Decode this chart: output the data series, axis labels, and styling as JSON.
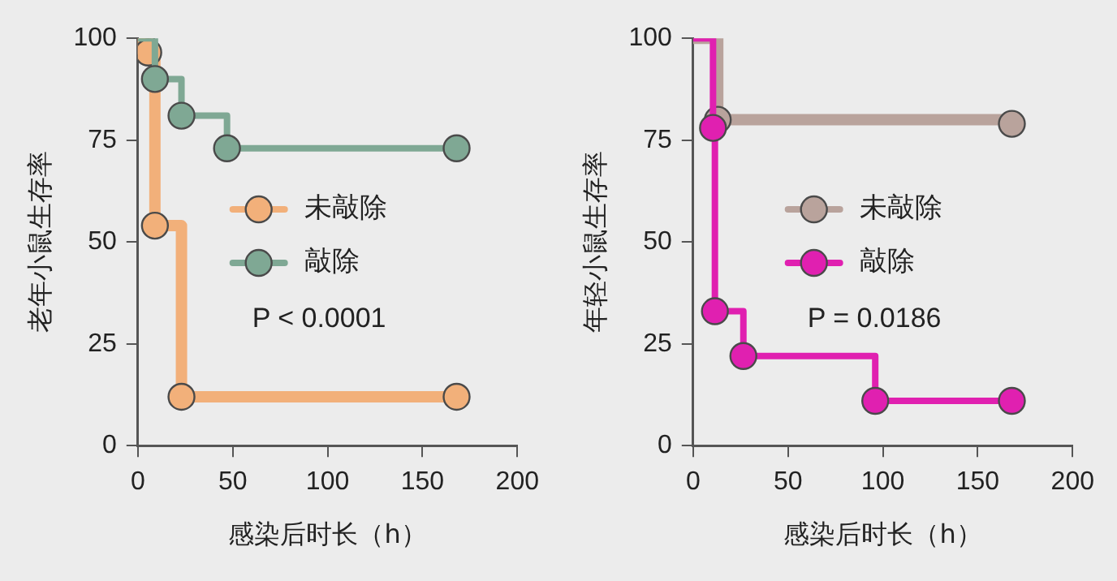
{
  "chart_data": [
    {
      "type": "step",
      "xlabel": "感染后时长（h）",
      "ylabel": "老年小鼠生存率",
      "xlim": [
        0,
        200
      ],
      "xticks": [
        0,
        50,
        100,
        150,
        200
      ],
      "ylim": [
        0,
        100
      ],
      "yticks": [
        0,
        25,
        50,
        75,
        100
      ],
      "grid": false,
      "legend": "right",
      "marker": "circle",
      "annotations": [
        "P < 0.0001"
      ],
      "series": [
        {
          "name": "敲除",
          "color": "#7fa894",
          "x": [
            0,
            9,
            23,
            47,
            168
          ],
          "values": [
            100,
            90,
            81,
            73,
            73
          ]
        },
        {
          "name": "未敲除",
          "color": "#f2b07a",
          "x": [
            0,
            2,
            5.5,
            9,
            23,
            168
          ],
          "values": [
            100,
            99,
            96.5,
            54,
            12,
            12
          ]
        }
      ]
    },
    {
      "type": "step",
      "xlabel": "感染后时长（h）",
      "ylabel": "年轻小鼠生存率",
      "xlim": [
        0,
        200
      ],
      "xticks": [
        0,
        50,
        100,
        150,
        200
      ],
      "ylim": [
        0,
        100
      ],
      "yticks": [
        0,
        25,
        50,
        75,
        100
      ],
      "grid": false,
      "legend": "right",
      "marker": "circle",
      "annotations": [
        "P = 0.0186"
      ],
      "series": [
        {
          "name": "敲除",
          "color": "#e020b0",
          "x": [
            0,
            10.5,
            11.5,
            26.5,
            96,
            168
          ],
          "values": [
            100,
            78,
            33,
            22,
            11,
            11
          ]
        },
        {
          "name": "未敲除",
          "color": "#b9a39c",
          "x": [
            0,
            13,
            168
          ],
          "values": [
            100,
            80,
            79
          ]
        }
      ]
    }
  ]
}
